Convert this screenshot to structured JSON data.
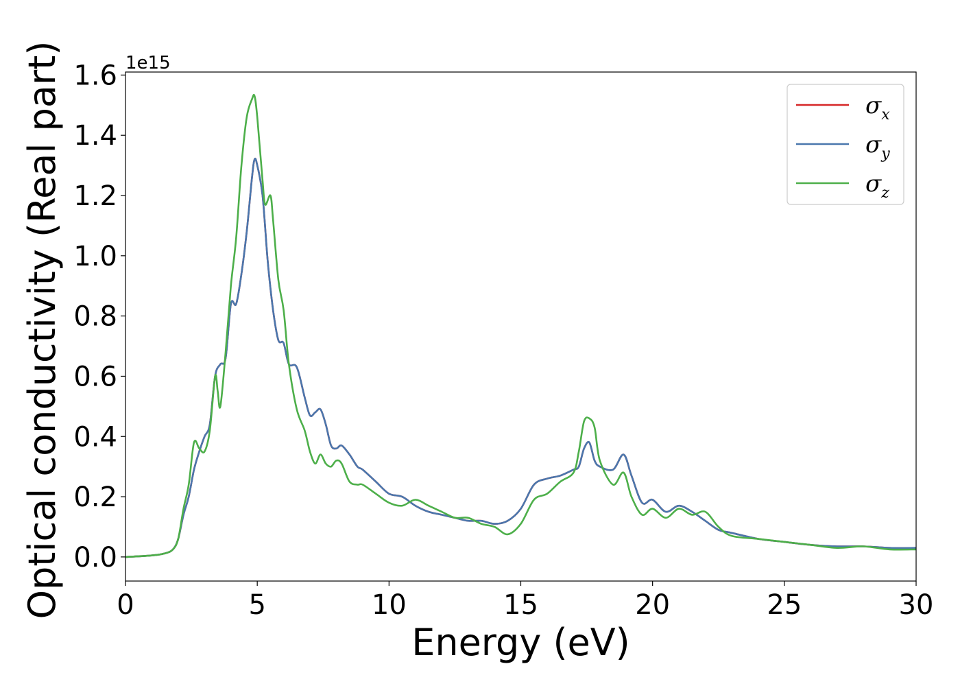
{
  "chart_data": {
    "type": "line",
    "xlabel": "Energy (eV)",
    "ylabel": "Optical conductivity (Real part)",
    "y_offset_label": "1e15",
    "y_scale_factor": 1000000000000000.0,
    "xlim": [
      0,
      30
    ],
    "ylim": [
      -0.08,
      1.61
    ],
    "grid": false,
    "legend_position": "top-right",
    "x_ticks": [
      0,
      5,
      10,
      15,
      20,
      25,
      30
    ],
    "x_tick_labels": [
      "0",
      "5",
      "10",
      "15",
      "20",
      "25",
      "30"
    ],
    "y_ticks": [
      0.0,
      0.2,
      0.4,
      0.6,
      0.8,
      1.0,
      1.2,
      1.4,
      1.6
    ],
    "y_tick_labels": [
      "0.0",
      "0.2",
      "0.4",
      "0.6",
      "0.8",
      "1.0",
      "1.2",
      "1.4",
      "1.6"
    ],
    "series": [
      {
        "name": "σx",
        "symbol": "σ",
        "subscript": "x",
        "color": "#d62728",
        "x": [
          0,
          1,
          1.5,
          1.8,
          2,
          2.2,
          2.4,
          2.6,
          2.8,
          3,
          3.2,
          3.4,
          3.6,
          3.8,
          4,
          4.2,
          4.4,
          4.6,
          4.8,
          4.9,
          5,
          5.2,
          5.4,
          5.6,
          5.8,
          6,
          6.2,
          6.5,
          6.8,
          7,
          7.2,
          7.4,
          7.6,
          7.8,
          8,
          8.2,
          8.5,
          8.8,
          9,
          9.5,
          10,
          10.5,
          11,
          11.5,
          12,
          12.5,
          13,
          13.5,
          14,
          14.5,
          15,
          15.5,
          16,
          16.5,
          17,
          17.2,
          17.4,
          17.6,
          17.8,
          18,
          18.5,
          18.9,
          19.2,
          19.6,
          20,
          20.5,
          21,
          21.5,
          22,
          22.5,
          23,
          24,
          25,
          26,
          27,
          28,
          29,
          30
        ],
        "y": [
          0,
          0.005,
          0.012,
          0.025,
          0.06,
          0.14,
          0.2,
          0.29,
          0.35,
          0.4,
          0.44,
          0.6,
          0.64,
          0.66,
          0.84,
          0.84,
          0.94,
          1.08,
          1.26,
          1.32,
          1.3,
          1.2,
          0.98,
          0.82,
          0.72,
          0.71,
          0.64,
          0.63,
          0.53,
          0.47,
          0.48,
          0.49,
          0.44,
          0.37,
          0.36,
          0.37,
          0.34,
          0.3,
          0.29,
          0.25,
          0.21,
          0.2,
          0.17,
          0.15,
          0.14,
          0.13,
          0.12,
          0.12,
          0.11,
          0.12,
          0.16,
          0.24,
          0.26,
          0.27,
          0.29,
          0.3,
          0.36,
          0.38,
          0.32,
          0.3,
          0.29,
          0.34,
          0.27,
          0.18,
          0.19,
          0.15,
          0.17,
          0.15,
          0.12,
          0.09,
          0.08,
          0.06,
          0.05,
          0.04,
          0.035,
          0.035,
          0.03,
          0.03
        ]
      },
      {
        "name": "σy",
        "symbol": "σ",
        "subscript": "y",
        "color": "#4a77ad",
        "x": [
          0,
          1,
          1.5,
          1.8,
          2,
          2.2,
          2.4,
          2.6,
          2.8,
          3,
          3.2,
          3.4,
          3.6,
          3.8,
          4,
          4.2,
          4.4,
          4.6,
          4.8,
          4.9,
          5,
          5.2,
          5.4,
          5.6,
          5.8,
          6,
          6.2,
          6.5,
          6.8,
          7,
          7.2,
          7.4,
          7.6,
          7.8,
          8,
          8.2,
          8.5,
          8.8,
          9,
          9.5,
          10,
          10.5,
          11,
          11.5,
          12,
          12.5,
          13,
          13.5,
          14,
          14.5,
          15,
          15.5,
          16,
          16.5,
          17,
          17.2,
          17.4,
          17.6,
          17.8,
          18,
          18.5,
          18.9,
          19.2,
          19.6,
          20,
          20.5,
          21,
          21.5,
          22,
          22.5,
          23,
          24,
          25,
          26,
          27,
          28,
          29,
          30
        ],
        "y": [
          0,
          0.005,
          0.012,
          0.025,
          0.06,
          0.14,
          0.2,
          0.29,
          0.35,
          0.4,
          0.44,
          0.6,
          0.64,
          0.66,
          0.84,
          0.84,
          0.94,
          1.08,
          1.26,
          1.32,
          1.3,
          1.2,
          0.98,
          0.82,
          0.72,
          0.71,
          0.64,
          0.63,
          0.53,
          0.47,
          0.48,
          0.49,
          0.44,
          0.37,
          0.36,
          0.37,
          0.34,
          0.3,
          0.29,
          0.25,
          0.21,
          0.2,
          0.17,
          0.15,
          0.14,
          0.13,
          0.12,
          0.12,
          0.11,
          0.12,
          0.16,
          0.24,
          0.26,
          0.27,
          0.29,
          0.3,
          0.36,
          0.38,
          0.32,
          0.3,
          0.29,
          0.34,
          0.27,
          0.18,
          0.19,
          0.15,
          0.17,
          0.15,
          0.12,
          0.09,
          0.08,
          0.06,
          0.05,
          0.04,
          0.035,
          0.035,
          0.03,
          0.03
        ]
      },
      {
        "name": "σz",
        "symbol": "σ",
        "subscript": "z",
        "color": "#4daf4a",
        "x": [
          0,
          1,
          1.5,
          1.8,
          2,
          2.2,
          2.4,
          2.6,
          2.8,
          3,
          3.2,
          3.4,
          3.5,
          3.6,
          3.8,
          4,
          4.2,
          4.4,
          4.6,
          4.8,
          4.9,
          5,
          5.2,
          5.3,
          5.5,
          5.6,
          5.8,
          6,
          6.2,
          6.5,
          6.8,
          7,
          7.2,
          7.4,
          7.6,
          7.8,
          8,
          8.2,
          8.5,
          8.8,
          9,
          9.5,
          10,
          10.5,
          11,
          11.5,
          12,
          12.5,
          13,
          13.5,
          14,
          14.5,
          15,
          15.5,
          16,
          16.5,
          17,
          17.2,
          17.4,
          17.6,
          17.8,
          18,
          18.5,
          18.9,
          19.2,
          19.6,
          20,
          20.5,
          21,
          21.5,
          22,
          22.5,
          23,
          24,
          25,
          26,
          27,
          28,
          29,
          30
        ],
        "y": [
          0,
          0.005,
          0.012,
          0.025,
          0.06,
          0.16,
          0.24,
          0.38,
          0.36,
          0.35,
          0.42,
          0.6,
          0.55,
          0.5,
          0.68,
          0.9,
          1.06,
          1.3,
          1.46,
          1.52,
          1.53,
          1.46,
          1.25,
          1.17,
          1.2,
          1.12,
          0.92,
          0.82,
          0.64,
          0.49,
          0.42,
          0.35,
          0.31,
          0.34,
          0.31,
          0.3,
          0.32,
          0.31,
          0.25,
          0.24,
          0.24,
          0.21,
          0.18,
          0.17,
          0.19,
          0.17,
          0.15,
          0.13,
          0.13,
          0.11,
          0.1,
          0.075,
          0.11,
          0.19,
          0.21,
          0.25,
          0.28,
          0.35,
          0.45,
          0.46,
          0.43,
          0.32,
          0.24,
          0.28,
          0.2,
          0.14,
          0.16,
          0.13,
          0.16,
          0.14,
          0.15,
          0.1,
          0.07,
          0.06,
          0.05,
          0.04,
          0.03,
          0.035,
          0.025,
          0.025
        ]
      }
    ]
  }
}
